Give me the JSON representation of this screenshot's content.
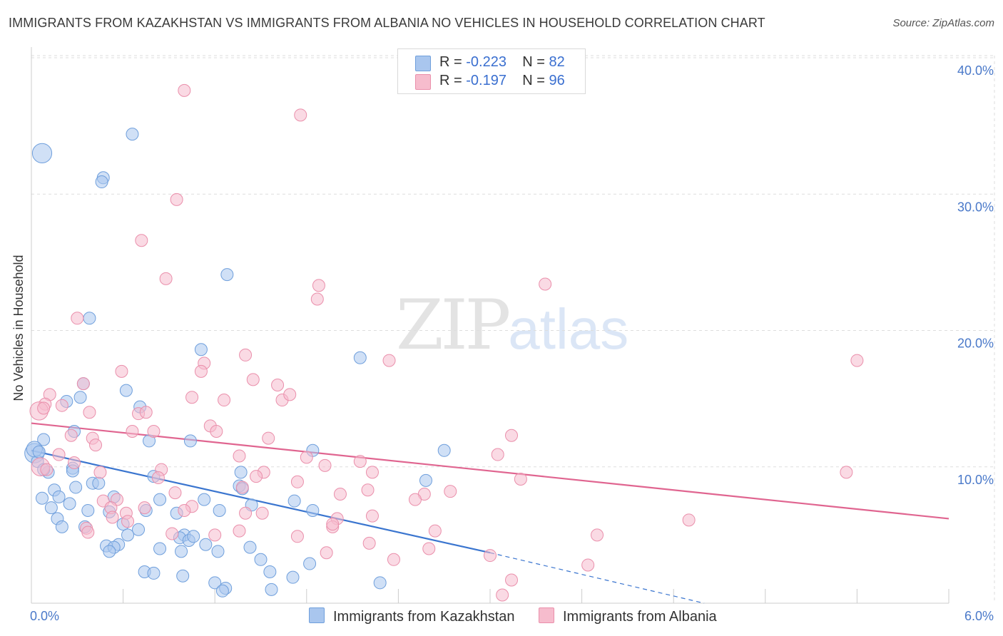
{
  "title": "IMMIGRANTS FROM KAZAKHSTAN VS IMMIGRANTS FROM ALBANIA NO VEHICLES IN HOUSEHOLD CORRELATION CHART",
  "source": "Source: ZipAtlas.com",
  "watermark": {
    "zip": "ZIP",
    "atlas": "atlas"
  },
  "legend": {
    "kazakhstan": {
      "r_label": "R = ",
      "r_value": "-0.223",
      "n_label": "N = ",
      "n_value": "82"
    },
    "albania": {
      "r_label": "R = ",
      "r_value": "-0.197",
      "n_label": "N = ",
      "n_value": "96"
    }
  },
  "bottom_legend": {
    "kazakhstan": "Immigrants from Kazakhstan",
    "albania": "Immigrants from Albania"
  },
  "colors": {
    "kazakhstan_fill": "#a9c6ee",
    "kazakhstan_stroke": "#6f9fdc",
    "kazakhstan_line": "#3a75cf",
    "albania_fill": "#f6bccd",
    "albania_stroke": "#ea8fab",
    "albania_line": "#e06590",
    "tick_text": "#4a79c9",
    "grid": "#dddddd"
  },
  "chart_data": {
    "type": "scatter",
    "title": "IMMIGRANTS FROM KAZAKHSTAN VS IMMIGRANTS FROM ALBANIA NO VEHICLES IN HOUSEHOLD CORRELATION CHART",
    "xlabel": "",
    "ylabel": "No Vehicles in Household",
    "xlim": [
      0,
      6
    ],
    "ylim": [
      0,
      40
    ],
    "x_tick_labels": [
      "0.0%",
      "6.0%"
    ],
    "y_ticks": [
      10,
      20,
      30,
      40
    ],
    "y_tick_labels": [
      "10.0%",
      "20.0%",
      "30.0%",
      "40.0%"
    ],
    "grid": true,
    "legend_position": "top-center",
    "series": [
      {
        "name": "Immigrants from Kazakhstan",
        "R": -0.223,
        "N": 82,
        "trendline": {
          "x": [
            0.0,
            3.0
          ],
          "y": [
            11.2,
            3.7
          ],
          "dashed_extension": {
            "x": [
              3.0,
              4.4
            ],
            "y": [
              3.7,
              0.0
            ]
          }
        },
        "points": [
          [
            0.07,
            33.0,
            1.6
          ],
          [
            0.66,
            34.4,
            1
          ],
          [
            0.47,
            31.2,
            1
          ],
          [
            0.46,
            30.9,
            1
          ],
          [
            1.28,
            24.1,
            1
          ],
          [
            0.38,
            20.9,
            1
          ],
          [
            1.11,
            18.6,
            1
          ],
          [
            2.15,
            18.0,
            1
          ],
          [
            0.62,
            15.6,
            1
          ],
          [
            0.34,
            16.1,
            1
          ],
          [
            0.32,
            15.1,
            1
          ],
          [
            0.23,
            14.8,
            1
          ],
          [
            0.71,
            14.4,
            1
          ],
          [
            0.28,
            12.6,
            1
          ],
          [
            0.08,
            12.0,
            1
          ],
          [
            0.02,
            11.0,
            1.6
          ],
          [
            0.04,
            10.4,
            1
          ],
          [
            0.77,
            11.9,
            1
          ],
          [
            1.04,
            11.9,
            1
          ],
          [
            1.84,
            11.2,
            1
          ],
          [
            2.7,
            11.2,
            1
          ],
          [
            0.11,
            9.6,
            1
          ],
          [
            0.27,
            9.9,
            1
          ],
          [
            0.8,
            9.3,
            1
          ],
          [
            1.37,
            9.6,
            1
          ],
          [
            1.36,
            8.6,
            1
          ],
          [
            2.58,
            9.0,
            1
          ],
          [
            0.29,
            8.5,
            1
          ],
          [
            0.4,
            8.8,
            1
          ],
          [
            0.44,
            8.8,
            1
          ],
          [
            0.54,
            7.8,
            1
          ],
          [
            0.15,
            8.3,
            1
          ],
          [
            0.07,
            7.7,
            1
          ],
          [
            0.18,
            7.8,
            1
          ],
          [
            0.25,
            7.3,
            1
          ],
          [
            0.13,
            7.0,
            1
          ],
          [
            0.84,
            7.6,
            1
          ],
          [
            1.13,
            7.6,
            1
          ],
          [
            1.72,
            7.5,
            1
          ],
          [
            0.75,
            6.8,
            1
          ],
          [
            0.37,
            6.8,
            1
          ],
          [
            0.51,
            6.7,
            1
          ],
          [
            0.95,
            6.6,
            1
          ],
          [
            1.23,
            6.8,
            1
          ],
          [
            1.84,
            6.8,
            1
          ],
          [
            0.17,
            6.2,
            1
          ],
          [
            0.2,
            5.6,
            1
          ],
          [
            0.6,
            5.8,
            1
          ],
          [
            0.35,
            5.6,
            1
          ],
          [
            0.7,
            5.4,
            1
          ],
          [
            1.0,
            5.0,
            1
          ],
          [
            0.97,
            4.8,
            1
          ],
          [
            1.03,
            4.6,
            1
          ],
          [
            0.63,
            5.0,
            1
          ],
          [
            0.57,
            4.3,
            1
          ],
          [
            0.49,
            4.2,
            1
          ],
          [
            0.54,
            4.1,
            1
          ],
          [
            0.84,
            4.0,
            1
          ],
          [
            0.98,
            3.8,
            1
          ],
          [
            1.22,
            3.8,
            1
          ],
          [
            1.43,
            4.1,
            1
          ],
          [
            0.51,
            3.8,
            1
          ],
          [
            1.5,
            3.2,
            1
          ],
          [
            1.82,
            2.9,
            1
          ],
          [
            0.74,
            2.3,
            1
          ],
          [
            0.8,
            2.2,
            1
          ],
          [
            0.99,
            2.0,
            1
          ],
          [
            1.56,
            2.3,
            1
          ],
          [
            1.71,
            1.9,
            1
          ],
          [
            1.2,
            1.5,
            1
          ],
          [
            1.27,
            1.1,
            1
          ],
          [
            1.57,
            1.0,
            1
          ],
          [
            2.28,
            1.5,
            1
          ],
          [
            1.25,
            0.9,
            1
          ],
          [
            1.14,
            4.3,
            1
          ],
          [
            0.08,
            9.8,
            1
          ],
          [
            0.02,
            11.3,
            1.3
          ],
          [
            0.05,
            11.1,
            1
          ],
          [
            1.38,
            8.4,
            1
          ],
          [
            0.27,
            9.7,
            1
          ],
          [
            1.44,
            7.2,
            1
          ],
          [
            1.06,
            4.9,
            1
          ]
        ]
      },
      {
        "name": "Immigrants from Albania",
        "R": -0.197,
        "N": 96,
        "trendline": {
          "x": [
            0.0,
            6.0
          ],
          "y": [
            13.2,
            6.2
          ]
        },
        "points": [
          [
            1.0,
            37.6,
            1
          ],
          [
            1.76,
            35.8,
            1
          ],
          [
            0.95,
            29.6,
            1
          ],
          [
            0.72,
            26.6,
            1
          ],
          [
            0.88,
            23.8,
            1
          ],
          [
            3.36,
            23.4,
            1
          ],
          [
            1.88,
            23.3,
            1
          ],
          [
            1.87,
            22.3,
            1
          ],
          [
            0.3,
            20.9,
            1
          ],
          [
            1.4,
            18.2,
            1
          ],
          [
            5.4,
            17.8,
            1
          ],
          [
            2.34,
            17.8,
            1
          ],
          [
            1.13,
            17.6,
            1
          ],
          [
            0.59,
            17.0,
            1
          ],
          [
            1.11,
            17.0,
            1
          ],
          [
            1.45,
            16.4,
            1
          ],
          [
            1.61,
            16.0,
            1
          ],
          [
            0.34,
            16.1,
            1
          ],
          [
            1.05,
            15.1,
            1
          ],
          [
            1.64,
            14.9,
            1
          ],
          [
            1.69,
            15.3,
            1
          ],
          [
            1.26,
            14.9,
            1
          ],
          [
            0.12,
            15.3,
            1
          ],
          [
            0.09,
            14.6,
            1
          ],
          [
            0.2,
            14.5,
            1
          ],
          [
            0.05,
            14.1,
            1.5
          ],
          [
            0.38,
            14.0,
            1
          ],
          [
            0.7,
            13.9,
            1
          ],
          [
            0.75,
            14.0,
            1
          ],
          [
            1.17,
            13.0,
            1
          ],
          [
            0.66,
            12.6,
            1
          ],
          [
            0.8,
            12.6,
            1
          ],
          [
            1.21,
            12.6,
            1
          ],
          [
            0.26,
            12.3,
            1
          ],
          [
            0.4,
            12.1,
            1
          ],
          [
            0.42,
            11.6,
            1
          ],
          [
            1.55,
            12.1,
            1
          ],
          [
            3.14,
            12.3,
            1
          ],
          [
            3.05,
            10.9,
            1
          ],
          [
            1.36,
            10.8,
            1
          ],
          [
            0.18,
            10.9,
            1
          ],
          [
            0.06,
            10.0,
            1.5
          ],
          [
            0.1,
            9.8,
            1
          ],
          [
            0.28,
            10.3,
            1
          ],
          [
            0.45,
            9.6,
            1
          ],
          [
            0.85,
            9.8,
            1
          ],
          [
            1.52,
            9.6,
            1
          ],
          [
            1.47,
            9.3,
            1
          ],
          [
            1.92,
            10.1,
            1
          ],
          [
            2.23,
            9.6,
            1
          ],
          [
            1.8,
            10.7,
            1
          ],
          [
            2.15,
            10.4,
            1
          ],
          [
            3.2,
            9.1,
            1
          ],
          [
            5.33,
            9.6,
            1
          ],
          [
            0.83,
            9.2,
            1
          ],
          [
            1.74,
            8.9,
            1
          ],
          [
            1.38,
            8.5,
            1
          ],
          [
            2.02,
            8.0,
            1
          ],
          [
            2.2,
            8.3,
            1
          ],
          [
            2.57,
            8.0,
            1
          ],
          [
            2.74,
            8.2,
            1
          ],
          [
            0.94,
            8.1,
            1
          ],
          [
            0.47,
            7.5,
            1
          ],
          [
            0.56,
            7.6,
            1
          ],
          [
            0.52,
            7.0,
            1
          ],
          [
            0.74,
            7.0,
            1
          ],
          [
            1.05,
            7.1,
            1
          ],
          [
            1.0,
            6.8,
            1
          ],
          [
            0.62,
            6.6,
            1
          ],
          [
            0.53,
            6.3,
            1
          ],
          [
            0.63,
            6.0,
            1
          ],
          [
            1.4,
            6.6,
            1
          ],
          [
            1.51,
            6.6,
            1
          ],
          [
            2.0,
            6.2,
            1
          ],
          [
            2.23,
            6.4,
            1
          ],
          [
            2.51,
            7.6,
            1
          ],
          [
            4.3,
            6.1,
            1
          ],
          [
            0.36,
            5.5,
            1
          ],
          [
            0.92,
            5.1,
            1
          ],
          [
            1.2,
            5.0,
            1
          ],
          [
            1.36,
            5.3,
            1
          ],
          [
            1.97,
            5.6,
            1
          ],
          [
            1.97,
            5.8,
            1
          ],
          [
            2.64,
            5.3,
            1
          ],
          [
            3.7,
            5.0,
            1
          ],
          [
            1.74,
            4.9,
            1
          ],
          [
            2.21,
            4.4,
            1
          ],
          [
            1.93,
            3.7,
            1
          ],
          [
            2.6,
            4.0,
            1
          ],
          [
            3.0,
            3.5,
            1
          ],
          [
            2.37,
            3.2,
            1
          ],
          [
            3.64,
            2.8,
            1
          ],
          [
            3.14,
            1.7,
            1
          ],
          [
            3.08,
            0.6,
            1
          ],
          [
            0.37,
            5.2,
            1
          ],
          [
            0.08,
            14.3,
            1
          ]
        ]
      }
    ]
  }
}
